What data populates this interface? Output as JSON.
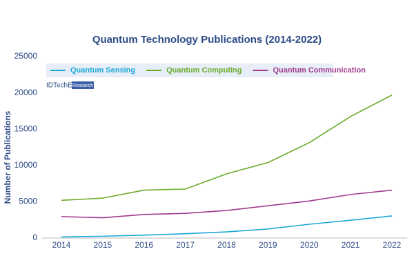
{
  "chart_data": {
    "type": "line",
    "title": "Quantum Technology Publications (2014-2022)",
    "y_label": "Number of Publications",
    "watermark": {
      "brand": "IDTechEx",
      "tag": "Research"
    },
    "categories": [
      "2014",
      "2015",
      "2016",
      "2017",
      "2018",
      "2019",
      "2020",
      "2021",
      "2022"
    ],
    "series": [
      {
        "name": "Quantum Sensing",
        "color": "#1ba8d8",
        "values": [
          150,
          250,
          400,
          600,
          850,
          1250,
          1900,
          2450,
          3050
        ]
      },
      {
        "name": "Quantum Computing",
        "color": "#6aaa2a",
        "values": [
          5200,
          5500,
          6600,
          6750,
          8850,
          10400,
          13150,
          16750,
          19700
        ]
      },
      {
        "name": "Quantum Communication",
        "color": "#a23a8e",
        "values": [
          2950,
          2800,
          3250,
          3400,
          3800,
          4450,
          5100,
          6000,
          6600
        ]
      }
    ],
    "ylim": [
      0,
      25000
    ],
    "yticks": [
      0,
      5000,
      10000,
      15000,
      20000,
      25000
    ],
    "grid": false,
    "legend": "top-left"
  }
}
